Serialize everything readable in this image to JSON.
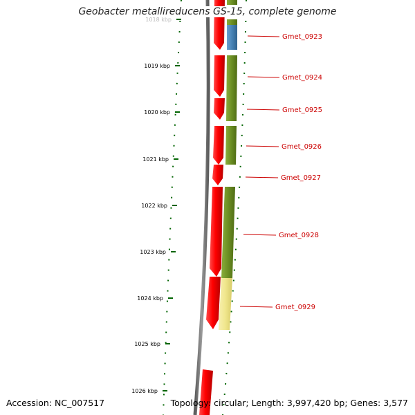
{
  "title": "Geobacter metallireducens GS-15, complete genome",
  "footer": {
    "accession": "Accession: NC_007517",
    "stats": "Topology: circular; Length: 3,997,420 bp; Genes: 3,577"
  },
  "colors": {
    "backbone": "#7a7a7a",
    "cds_forward": "#ff0000",
    "cog_green": "#6b8e23",
    "cog_blue": "#4682b4",
    "cog_yellow": "#f0e68c",
    "label": "#cc0000",
    "tick_dots": "#006400"
  },
  "ruler": [
    {
      "label": "1018 kbp"
    },
    {
      "label": "1019 kbp"
    },
    {
      "label": "1020 kbp"
    },
    {
      "label": "1021 kbp"
    },
    {
      "label": "1022 kbp"
    },
    {
      "label": "1023 kbp"
    },
    {
      "label": "1024 kbp"
    },
    {
      "label": "1025 kbp"
    },
    {
      "label": "1026 kbp"
    }
  ],
  "genes": [
    {
      "name": "Gmet_0923",
      "cog": "blue"
    },
    {
      "name": "Gmet_0924",
      "cog": "green"
    },
    {
      "name": "Gmet_0925",
      "cog": "green"
    },
    {
      "name": "Gmet_0926",
      "cog": "green"
    },
    {
      "name": "Gmet_0927",
      "cog": "none"
    },
    {
      "name": "Gmet_0928",
      "cog": "green"
    },
    {
      "name": "Gmet_0929",
      "cog": "yellow"
    }
  ]
}
